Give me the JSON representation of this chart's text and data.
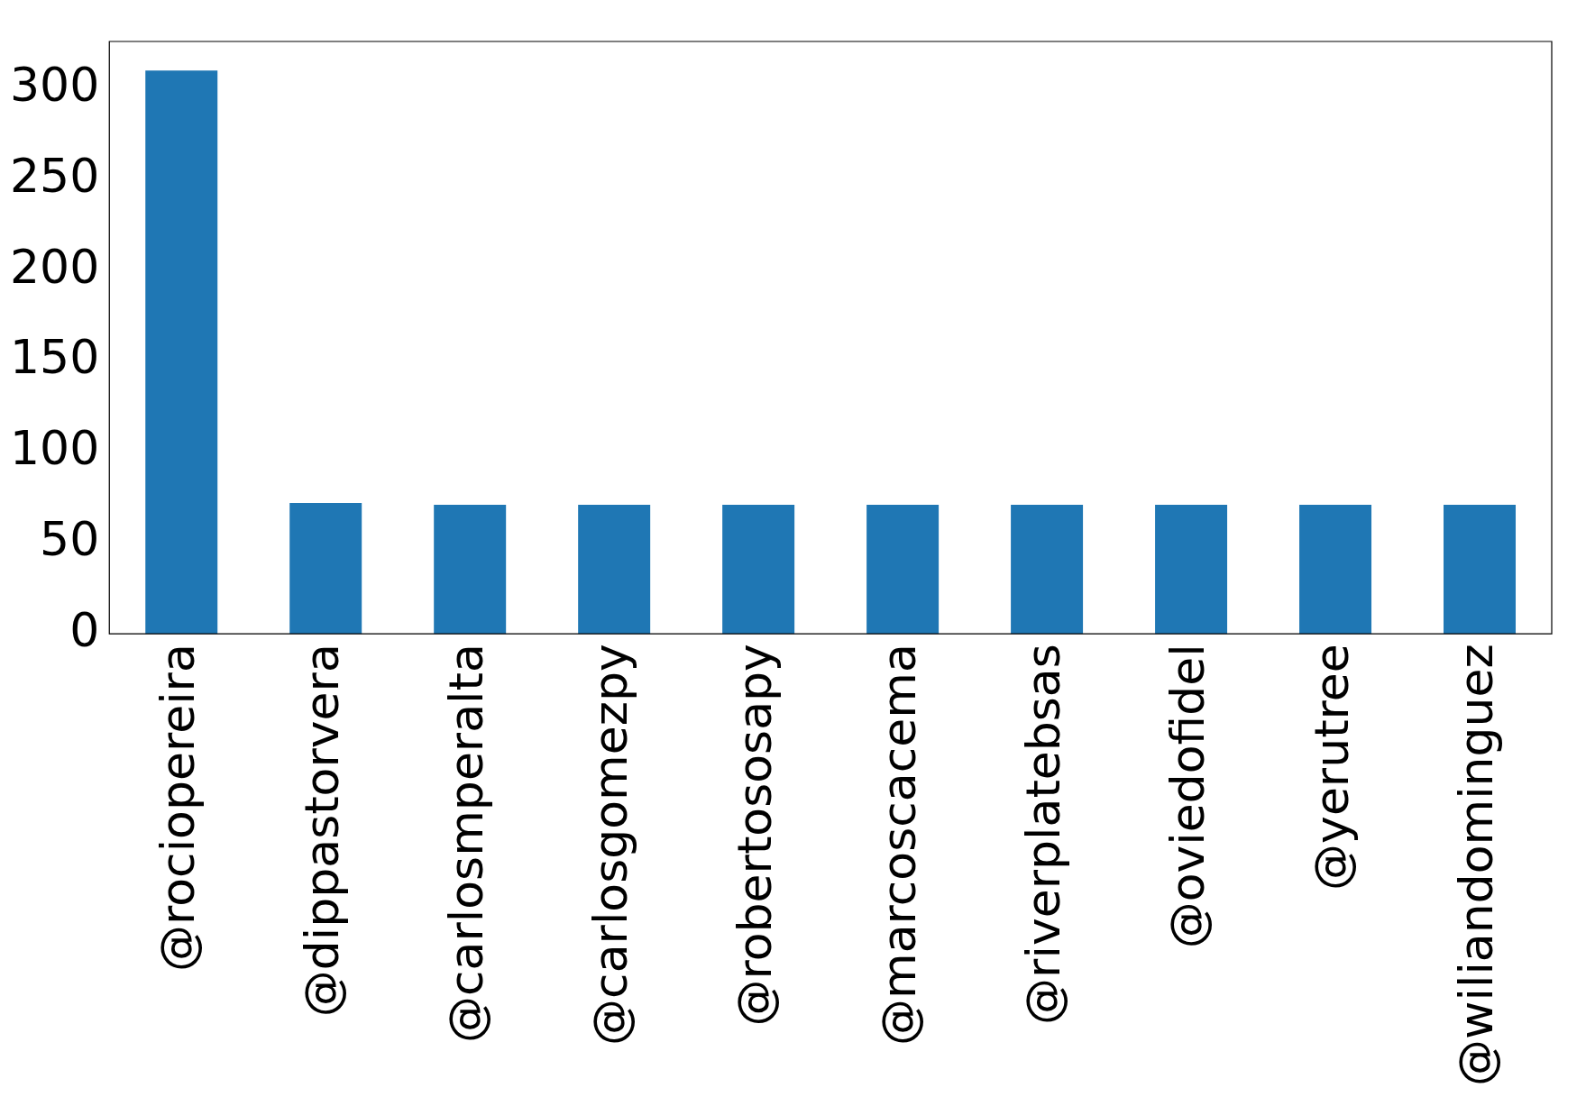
{
  "chart_data": {
    "type": "bar",
    "categories": [
      "@rociopereira",
      "@dippastorvera",
      "@carlosmperalta",
      "@carlosgomezpy",
      "@robertososapy",
      "@marcoscacema",
      "@riverplatebsas",
      "@oviedofidel",
      "@yerutree",
      "@wiliandominguez"
    ],
    "values": [
      310,
      72,
      71,
      71,
      71,
      71,
      71,
      71,
      71,
      71
    ],
    "color": "#1f77b4",
    "ylim": [
      0,
      326
    ],
    "yticks": [
      0,
      50,
      100,
      150,
      200,
      250,
      300
    ],
    "grid": false,
    "legend": false
  }
}
